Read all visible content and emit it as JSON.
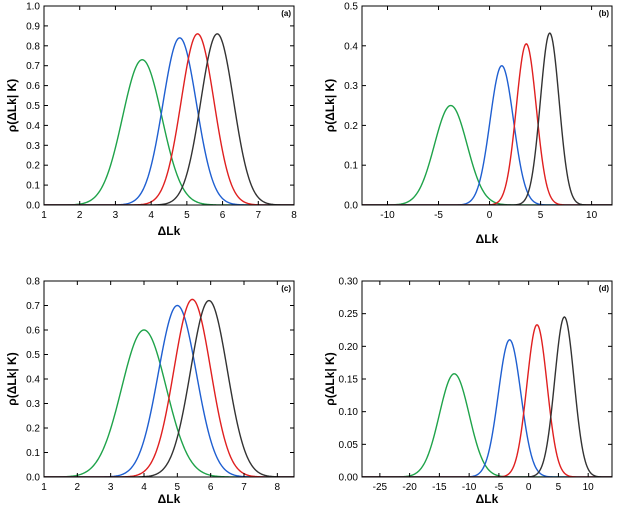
{
  "chart_data": [
    {
      "type": "line",
      "panel_label": "(a)",
      "xlabel": "ΔLk",
      "ylabel": "ρ(ΔLk| K)",
      "xlim": [
        1,
        8
      ],
      "ylim": [
        0,
        1.0
      ],
      "xticks": [
        1,
        2,
        3,
        4,
        5,
        6,
        7,
        8
      ],
      "yticks": [
        0.0,
        0.1,
        0.2,
        0.3,
        0.4,
        0.5,
        0.6,
        0.7,
        0.8,
        0.9,
        1.0
      ],
      "ytick_labels": [
        "0.0",
        "0.1",
        "0.2",
        "0.3",
        "0.4",
        "0.5",
        "0.6",
        "0.7",
        "0.8",
        "0.9",
        "1.0"
      ],
      "series": [
        {
          "color": "#1fa34a",
          "peak_x": 3.75,
          "peak_y": 0.73,
          "sigma": 0.55
        },
        {
          "color": "#1f5fd1",
          "peak_x": 4.8,
          "peak_y": 0.84,
          "sigma": 0.47
        },
        {
          "color": "#e02020",
          "peak_x": 5.3,
          "peak_y": 0.86,
          "sigma": 0.46
        },
        {
          "color": "#333333",
          "peak_x": 5.85,
          "peak_y": 0.86,
          "sigma": 0.46
        }
      ]
    },
    {
      "type": "line",
      "panel_label": "(b)",
      "xlabel": "ΔLk",
      "ylabel": "ρ(ΔLk| K)",
      "xlim": [
        -12.5,
        12
      ],
      "ylim": [
        0,
        0.5
      ],
      "xticks": [
        -10,
        -5,
        0,
        5,
        10
      ],
      "yticks": [
        0.0,
        0.1,
        0.2,
        0.3,
        0.4,
        0.5
      ],
      "ytick_labels": [
        "0.0",
        "0.1",
        "0.2",
        "0.3",
        "0.4",
        "0.5"
      ],
      "series": [
        {
          "color": "#1fa34a",
          "peak_x": -3.8,
          "peak_y": 0.25,
          "sigma": 1.6
        },
        {
          "color": "#1f5fd1",
          "peak_x": 1.2,
          "peak_y": 0.35,
          "sigma": 1.15
        },
        {
          "color": "#e02020",
          "peak_x": 3.6,
          "peak_y": 0.405,
          "sigma": 0.98
        },
        {
          "color": "#333333",
          "peak_x": 5.9,
          "peak_y": 0.432,
          "sigma": 0.92
        }
      ]
    },
    {
      "type": "line",
      "panel_label": "(c)",
      "xlabel": "ΔLk",
      "ylabel": "ρ(ΔLk| K)",
      "xlim": [
        1,
        8.5
      ],
      "ylim": [
        0,
        0.8
      ],
      "xticks": [
        1,
        2,
        3,
        4,
        5,
        6,
        7,
        8
      ],
      "yticks": [
        0.0,
        0.1,
        0.2,
        0.3,
        0.4,
        0.5,
        0.6,
        0.7,
        0.8
      ],
      "ytick_labels": [
        "0.0",
        "0.1",
        "0.2",
        "0.3",
        "0.4",
        "0.5",
        "0.6",
        "0.7",
        "0.8"
      ],
      "series": [
        {
          "color": "#1fa34a",
          "peak_x": 4.0,
          "peak_y": 0.6,
          "sigma": 0.67
        },
        {
          "color": "#1f5fd1",
          "peak_x": 5.0,
          "peak_y": 0.7,
          "sigma": 0.57
        },
        {
          "color": "#e02020",
          "peak_x": 5.45,
          "peak_y": 0.725,
          "sigma": 0.55
        },
        {
          "color": "#333333",
          "peak_x": 5.95,
          "peak_y": 0.72,
          "sigma": 0.55
        }
      ]
    },
    {
      "type": "line",
      "panel_label": "(d)",
      "xlabel": "ΔLk",
      "ylabel": "ρ(ΔLk| K)",
      "xlim": [
        -28,
        14
      ],
      "ylim": [
        0,
        0.3
      ],
      "xticks": [
        -25,
        -20,
        -15,
        -10,
        -5,
        0,
        5,
        10
      ],
      "yticks": [
        0.0,
        0.05,
        0.1,
        0.15,
        0.2,
        0.25,
        0.3
      ],
      "ytick_labels": [
        "0.00",
        "0.05",
        "0.10",
        "0.15",
        "0.20",
        "0.25",
        "0.30"
      ],
      "series": [
        {
          "color": "#1fa34a",
          "peak_x": -12.5,
          "peak_y": 0.158,
          "sigma": 2.5
        },
        {
          "color": "#1f5fd1",
          "peak_x": -3.2,
          "peak_y": 0.21,
          "sigma": 1.9
        },
        {
          "color": "#e02020",
          "peak_x": 1.4,
          "peak_y": 0.233,
          "sigma": 1.7
        },
        {
          "color": "#333333",
          "peak_x": 6.0,
          "peak_y": 0.245,
          "sigma": 1.63
        }
      ]
    }
  ]
}
